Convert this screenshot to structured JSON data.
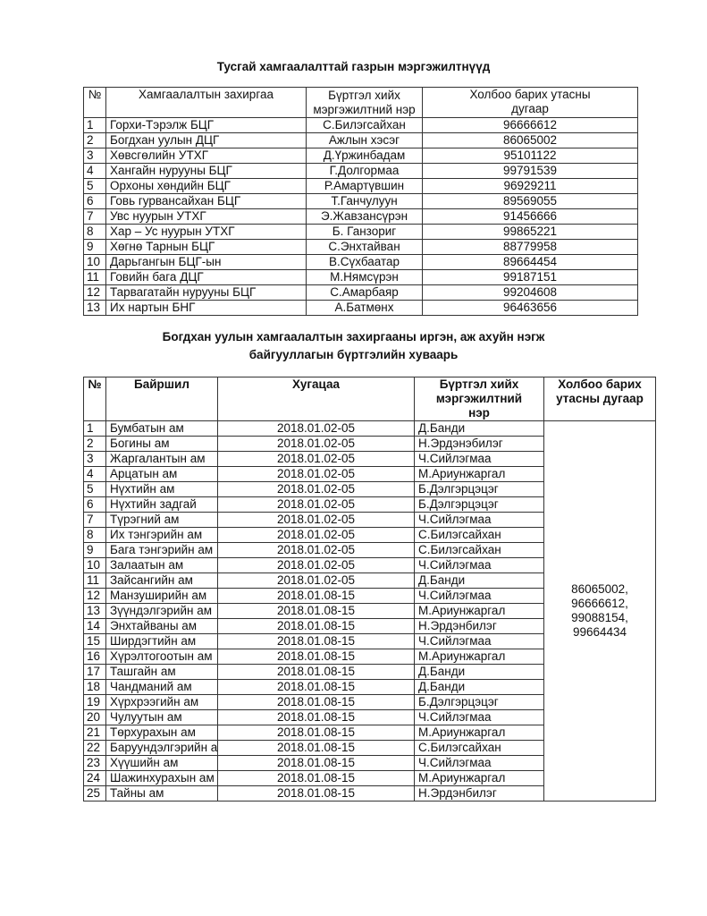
{
  "section1": {
    "title": "Тусгай хамгаалалттай газрын мэргэжилтнүүд",
    "headers": [
      "№",
      "Хамгаалалтын захиргаа",
      "Бүртгэл хийх мэргэжилтний нэр",
      "Холбоо барих утасны дугаар"
    ],
    "rows": [
      {
        "no": "1",
        "org": "Горхи-Тэрэлж БЦГ",
        "name": "С.Билэгсайхан",
        "phone": "96666612"
      },
      {
        "no": "2",
        "org": "Богдхан уулын ДЦГ",
        "name": "Ажлын хэсэг",
        "phone": "86065002"
      },
      {
        "no": "3",
        "org": "Хөвсгөлийн УТХГ",
        "name": "Д.Үржинбадам",
        "phone": "95101122"
      },
      {
        "no": "4",
        "org": "Хангайн нурууны БЦГ",
        "name": "Г.Долгормаа",
        "phone": "99791539"
      },
      {
        "no": "5",
        "org": "Орхоны хөндийн БЦГ",
        "name": "Р.Амартүвшин",
        "phone": "96929211"
      },
      {
        "no": "6",
        "org": "Говь гурвансайхан БЦГ",
        "name": "Т.Ганчулуун",
        "phone": "89569055"
      },
      {
        "no": "7",
        "org": "Увс нуурын УТХГ",
        "name": "Э.Жавзансүрэн",
        "phone": "91456666"
      },
      {
        "no": "8",
        "org": "Хар – Ус нуурын УТХГ",
        "name": "Б. Ганзориг",
        "phone": "99865221"
      },
      {
        "no": "9",
        "org": "Хөгнө Тарнын БЦГ",
        "name": "С.Энхтайван",
        "phone": "88779958"
      },
      {
        "no": "10",
        "org": "Дарьгангын БЦГ-ын",
        "name": "В.Сүхбаатар",
        "phone": "89664454"
      },
      {
        "no": "11",
        "org": "Говийн бага ДЦГ",
        "name": "М.Нямсүрэн",
        "phone": "99187151"
      },
      {
        "no": "12",
        "org": "Тарвагатайн нурууны БЦГ",
        "name": "С.Амарбаяр",
        "phone": "99204608"
      },
      {
        "no": "13",
        "org": "Их нартын БНГ",
        "name": "А.Батмөнх",
        "phone": "96463656"
      }
    ]
  },
  "section2": {
    "title_line1": "Богдхан уулын хамгаалалтын захиргааны иргэн, аж ахуйн нэгж",
    "title_line2": "байгууллагын бүртгэлийн хуваарь",
    "headers": [
      "№",
      "Байршил",
      "Хугацаа",
      "Бүртгэл хийх мэргэжилтний нэр",
      "Холбоо барих утасны дугаар"
    ],
    "phones": "86065002, 96666612, 99088154, 99664434",
    "rows": [
      {
        "no": "1",
        "place": "Бумбатын ам",
        "period": "2018.01.02-05",
        "name": "Д.Банди"
      },
      {
        "no": "2",
        "place": "Богины ам",
        "period": "2018.01.02-05",
        "name": "Н.Эрдэнэбилэг"
      },
      {
        "no": "3",
        "place": "Жаргалантын ам",
        "period": "2018.01.02-05",
        "name": "Ч.Сийлэгмаа"
      },
      {
        "no": "4",
        "place": "Арцатын ам",
        "period": "2018.01.02-05",
        "name": "М.Ариунжаргал"
      },
      {
        "no": "5",
        "place": "Нүхтийн ам",
        "period": "2018.01.02-05",
        "name": "Б.Дэлгэрцэцэг"
      },
      {
        "no": "6",
        "place": "Нүхтийн задгай",
        "period": "2018.01.02-05",
        "name": "Б.Дэлгэрцэцэг"
      },
      {
        "no": "7",
        "place": "Түрэгний ам",
        "period": "2018.01.02-05",
        "name": "Ч.Сийлэгмаа"
      },
      {
        "no": "8",
        "place": "Их тэнгэрийн ам",
        "period": "2018.01.02-05",
        "name": "С.Билэгсайхан"
      },
      {
        "no": "9",
        "place": "Бага тэнгэрийн ам",
        "period": "2018.01.02-05",
        "name": "С.Билэгсайхан"
      },
      {
        "no": "10",
        "place": "Залаатын ам",
        "period": "2018.01.02-05",
        "name": "Ч.Сийлэгмаа"
      },
      {
        "no": "11",
        "place": "Зайсангийн ам",
        "period": "2018.01.02-05",
        "name": "Д.Банди"
      },
      {
        "no": "12",
        "place": "Манзуширийн ам",
        "period": "2018.01.08-15",
        "name": "Ч.Сийлэгмаа"
      },
      {
        "no": "13",
        "place": "Зүүндэлгэрийн ам",
        "period": "2018.01.08-15",
        "name": "М.Ариунжаргал"
      },
      {
        "no": "14",
        "place": "Энхтайваны ам",
        "period": "2018.01.08-15",
        "name": "Н.Эрдэнбилэг"
      },
      {
        "no": "15",
        "place": "Ширдэгтийн ам",
        "period": "2018.01.08-15",
        "name": "Ч.Сийлэгмаа"
      },
      {
        "no": "16",
        "place": "Хүрэлтогоотын ам",
        "period": "2018.01.08-15",
        "name": "М.Ариунжаргал"
      },
      {
        "no": "17",
        "place": "Ташгайн ам",
        "period": "2018.01.08-15",
        "name": "Д.Банди"
      },
      {
        "no": "18",
        "place": "Чандманий ам",
        "period": "2018.01.08-15",
        "name": "Д.Банди"
      },
      {
        "no": "19",
        "place": "Хүрхрээгийн ам",
        "period": "2018.01.08-15",
        "name": "Б.Дэлгэрцэцэг"
      },
      {
        "no": "20",
        "place": "Чулуутын ам",
        "period": "2018.01.08-15",
        "name": "Ч.Сийлэгмаа"
      },
      {
        "no": "21",
        "place": "Төрхурахын ам",
        "period": "2018.01.08-15",
        "name": "М.Ариунжаргал"
      },
      {
        "no": "22",
        "place": "Баруундэлгэрийн ам",
        "period": "2018.01.08-15",
        "name": "С.Билэгсайхан"
      },
      {
        "no": "23",
        "place": "Хүүшийн ам",
        "period": "2018.01.08-15",
        "name": "Ч.Сийлэгмаа"
      },
      {
        "no": "24",
        "place": "Шажинхурахын ам",
        "period": "2018.01.08-15",
        "name": "М.Ариунжаргал"
      },
      {
        "no": "25",
        "place": "Тайны ам",
        "period": "2018.01.08-15",
        "name": "Н.Эрдэнбилэг"
      }
    ]
  }
}
